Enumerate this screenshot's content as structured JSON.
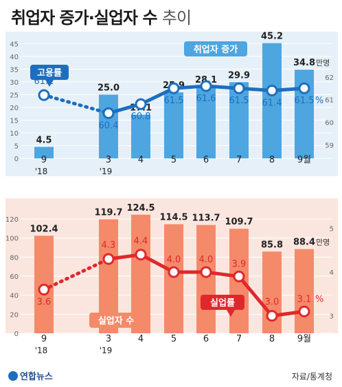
{
  "title": {
    "main": "취업자 증가·실업자 수",
    "sub": "추이"
  },
  "chart_data": [
    {
      "type": "bar+line",
      "x_labels": [
        [
          "9",
          "'18"
        ],
        [
          "3",
          "'19"
        ],
        [
          "4",
          ""
        ],
        [
          "5",
          ""
        ],
        [
          "6",
          ""
        ],
        [
          "7",
          ""
        ],
        [
          "8",
          ""
        ],
        [
          "9월",
          ""
        ]
      ],
      "left_axis_ticks": [
        "0",
        "5",
        "10",
        "15",
        "20",
        "25",
        "30",
        "35",
        "40",
        "45"
      ],
      "left_ylim": [
        0,
        47
      ],
      "right_axis_ticks": [
        "59",
        "60",
        "61",
        "62"
      ],
      "right_ylim": [
        58.4,
        63.7
      ],
      "bars": {
        "name": "취업자 증가",
        "unit": "만명",
        "values": [
          4.5,
          25.0,
          17.1,
          25.9,
          28.1,
          29.9,
          45.2,
          34.8
        ],
        "labels": [
          "4.5",
          "25.0",
          "17.1",
          "25.9",
          "28.1",
          "29.9",
          "45.2",
          "34.8"
        ],
        "color": "#4da6e0"
      },
      "line": {
        "name": "고용률",
        "unit": "%",
        "values": [
          61.2,
          60.4,
          60.8,
          61.5,
          61.6,
          61.5,
          61.4,
          61.5
        ],
        "labels": [
          "61.2",
          "60.4",
          "60.8",
          "61.5",
          "61.6",
          "61.5",
          "61.4",
          "61.5"
        ],
        "color": "#1c6fbf"
      }
    },
    {
      "type": "bar+line",
      "x_labels": [
        [
          "9",
          "'18"
        ],
        [
          "3",
          "'19"
        ],
        [
          "4",
          ""
        ],
        [
          "5",
          ""
        ],
        [
          "6",
          ""
        ],
        [
          "7",
          ""
        ],
        [
          "8",
          ""
        ],
        [
          "9월",
          ""
        ]
      ],
      "left_axis_ticks": [
        "0",
        "20",
        "40",
        "60",
        "80",
        "100",
        "120"
      ],
      "left_ylim": [
        0,
        133
      ],
      "right_axis_ticks": [
        "3",
        "4",
        "5"
      ],
      "right_ylim": [
        2.6,
        5.5
      ],
      "bars": {
        "name": "실업자 수",
        "unit": "만명",
        "values": [
          102.4,
          119.7,
          124.5,
          114.5,
          113.7,
          109.7,
          85.8,
          88.4
        ],
        "labels": [
          "102.4",
          "119.7",
          "124.5",
          "114.5",
          "113.7",
          "109.7",
          "85.8",
          "88.4"
        ],
        "color": "#f48a6a"
      },
      "line": {
        "name": "실업률",
        "unit": "%",
        "values": [
          3.6,
          4.3,
          4.4,
          4.0,
          4.0,
          3.9,
          3.0,
          3.1
        ],
        "labels": [
          "3.6",
          "4.3",
          "4.4",
          "4.0",
          "4.0",
          "3.9",
          "3.0",
          "3.1"
        ],
        "color": "#e0282c"
      }
    }
  ],
  "footer": {
    "logo": "연합뉴스",
    "source": "자료/통계청"
  }
}
